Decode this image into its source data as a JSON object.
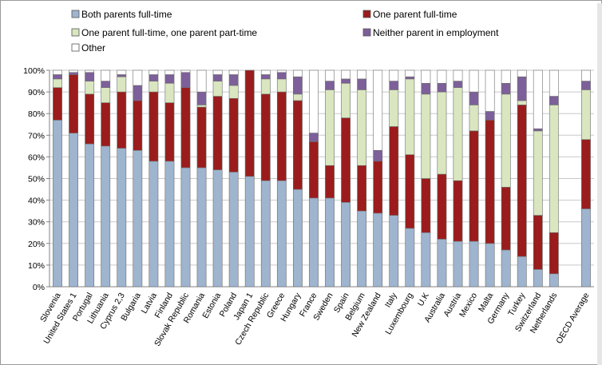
{
  "chart_data": {
    "type": "bar",
    "stacked": true,
    "title": "",
    "xlabel": "",
    "ylabel": "",
    "ylim": [
      0,
      100
    ],
    "yticks": [
      "0%",
      "10%",
      "20%",
      "30%",
      "40%",
      "50%",
      "60%",
      "70%",
      "80%",
      "90%",
      "100%"
    ],
    "grid": true,
    "legend_position": "top",
    "categories": [
      "Slovenia",
      "United States 1",
      "Portugal",
      "Lithuania",
      "Cyprus 2,3",
      "Bulgaria",
      "Latvia",
      "Finland",
      "Slovak Republic",
      "Romania",
      "Estonia",
      "Poland",
      "Japan 1",
      "Czech Republic",
      "Greece",
      "Hungary",
      "France",
      "Sweden",
      "Spain",
      "Belgium",
      "New Zealand",
      "Italy",
      "Luxembourg",
      "U.K",
      "Australia",
      "Austria",
      "Mexico",
      "Malta",
      "Germany",
      "Turkey",
      "Switzerland",
      "Netherlands",
      "",
      "OECD Average"
    ],
    "series": [
      {
        "name": "Both parents full-time",
        "color": "#9eb4cf",
        "values": [
          77,
          71,
          66,
          65,
          64,
          63,
          58,
          58,
          55,
          55,
          54,
          53,
          51,
          49,
          49,
          45,
          41,
          41,
          39,
          35,
          34,
          33,
          27,
          25,
          22,
          21,
          21,
          20,
          17,
          14,
          8,
          6,
          null,
          36
        ]
      },
      {
        "name": "One parent full-time",
        "color": "#9b1c1c",
        "values": [
          15,
          27,
          23,
          20,
          26,
          23,
          32,
          27,
          37,
          28,
          34,
          34,
          49,
          40,
          41,
          41,
          26,
          15,
          39,
          21,
          24,
          41,
          34,
          25,
          30,
          28,
          51,
          57,
          29,
          70,
          25,
          19,
          null,
          32
        ]
      },
      {
        "name": "One parent full-time, one parent part-time",
        "color": "#d9e6c0",
        "values": [
          4,
          0,
          6,
          7,
          7,
          0,
          5,
          9,
          0,
          1,
          7,
          6,
          0,
          7,
          6,
          3,
          0,
          35,
          16,
          35,
          0,
          17,
          35,
          39,
          38,
          43,
          12,
          0,
          43,
          2,
          39,
          59,
          null,
          23
        ]
      },
      {
        "name": "Neither parent in employment",
        "color": "#7d5f9a",
        "values": [
          2,
          1,
          4,
          3,
          1,
          7,
          3,
          4,
          7,
          6,
          3,
          5,
          0,
          2,
          3,
          8,
          4,
          4,
          2,
          5,
          5,
          4,
          1,
          5,
          4,
          3,
          6,
          4,
          5,
          11,
          1,
          4,
          null,
          4
        ]
      },
      {
        "name": "Other",
        "color": "#ffffff",
        "values": [
          2,
          1,
          1,
          5,
          2,
          7,
          2,
          2,
          1,
          10,
          2,
          2,
          0,
          2,
          1,
          3,
          29,
          5,
          4,
          4,
          37,
          5,
          3,
          6,
          6,
          5,
          10,
          19,
          6,
          3,
          27,
          12,
          null,
          5
        ]
      }
    ]
  }
}
